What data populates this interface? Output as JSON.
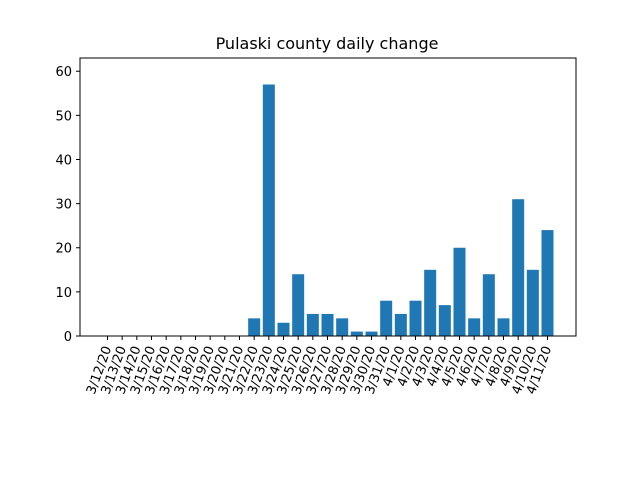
{
  "chart_data": {
    "type": "bar",
    "title": "Pulaski county daily change",
    "xlabel": "",
    "ylabel": "",
    "ylim": [
      0,
      63
    ],
    "yticks": [
      0,
      10,
      20,
      30,
      40,
      50,
      60
    ],
    "grid": false,
    "bar_color": "#1f77b4",
    "categories": [
      "3/12/20",
      "3/13/20",
      "3/14/20",
      "3/15/20",
      "3/16/20",
      "3/17/20",
      "3/18/20",
      "3/19/20",
      "3/20/20",
      "3/21/20",
      "3/22/20",
      "3/23/20",
      "3/24/20",
      "3/25/20",
      "3/26/20",
      "3/27/20",
      "3/28/20",
      "3/29/20",
      "3/30/20",
      "3/31/20",
      "4/1/20",
      "4/2/20",
      "4/3/20",
      "4/4/20",
      "4/5/20",
      "4/6/20",
      "4/7/20",
      "4/8/20",
      "4/9/20",
      "4/10/20",
      "4/11/20"
    ],
    "values": [
      0,
      0,
      0,
      0,
      0,
      0,
      0,
      0,
      0,
      0,
      4,
      57,
      3,
      14,
      5,
      5,
      4,
      1,
      1,
      8,
      5,
      8,
      15,
      7,
      20,
      4,
      14,
      4,
      31,
      15,
      24
    ]
  }
}
